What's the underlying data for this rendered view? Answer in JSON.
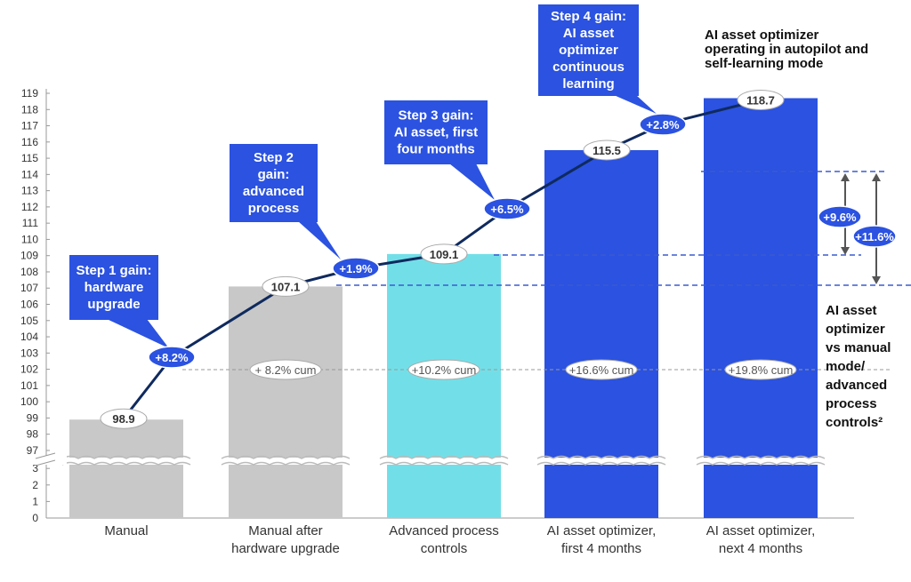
{
  "chart_data": {
    "type": "bar",
    "title": "",
    "xlabel": "",
    "ylabel": "",
    "ylim": [
      0,
      119
    ],
    "axis_break": {
      "lower": [
        0,
        3
      ],
      "upper": [
        97,
        119
      ]
    },
    "yticks_upper": [
      "97",
      "98",
      "99",
      "100",
      "101",
      "102",
      "103",
      "104",
      "105",
      "106",
      "107",
      "108",
      "109",
      "110",
      "111",
      "112",
      "113",
      "114",
      "115",
      "116",
      "117",
      "118",
      "119"
    ],
    "yticks_lower": [
      "0",
      "1",
      "2",
      "3"
    ],
    "categories": [
      [
        "Manual"
      ],
      [
        "Manual after",
        "hardware upgrade"
      ],
      [
        "Advanced process",
        "controls"
      ],
      [
        "AI asset optimizer,",
        "first 4 months"
      ],
      [
        "AI asset optimizer,",
        "next 4 months"
      ]
    ],
    "values": [
      98.9,
      107.1,
      109.1,
      115.5,
      118.7
    ],
    "value_labels": [
      "98.9",
      "107.1",
      "109.1",
      "115.5",
      "118.7"
    ],
    "bar_colors": [
      "#c8c8c8",
      "#c8c8c8",
      "#72dfe8",
      "#2b52e0",
      "#2b52e0"
    ],
    "cumulative_labels": [
      "",
      "+ 8.2% cum",
      "+10.2% cum",
      "+16.6% cum",
      "+19.8% cum"
    ],
    "step_gains": [
      "+8.2%",
      "+1.9%",
      "+6.5%",
      "+2.8%"
    ],
    "step_callouts": [
      [
        "Step 1 gain:",
        "hardware",
        "upgrade"
      ],
      [
        "Step 2",
        "gain:",
        "advanced",
        "process"
      ],
      [
        "Step 3 gain:",
        "AI asset, first",
        "four months"
      ],
      [
        "Step 4 gain:",
        "AI asset",
        "optimizer",
        "continuous",
        "learning"
      ]
    ],
    "comparison_gains": [
      "+9.6%",
      "+11.6%"
    ],
    "annotation_top": [
      "AI asset optimizer",
      "operating in autopilot and",
      "self-learning mode"
    ],
    "annotation_side": [
      "AI asset",
      "optimizer",
      "vs manual",
      "mode/",
      "advanced",
      "process",
      "controls²"
    ],
    "colors": {
      "line": "#0f2a5e",
      "accent": "#2b52e0",
      "dashed": "#3a5bd0"
    }
  }
}
